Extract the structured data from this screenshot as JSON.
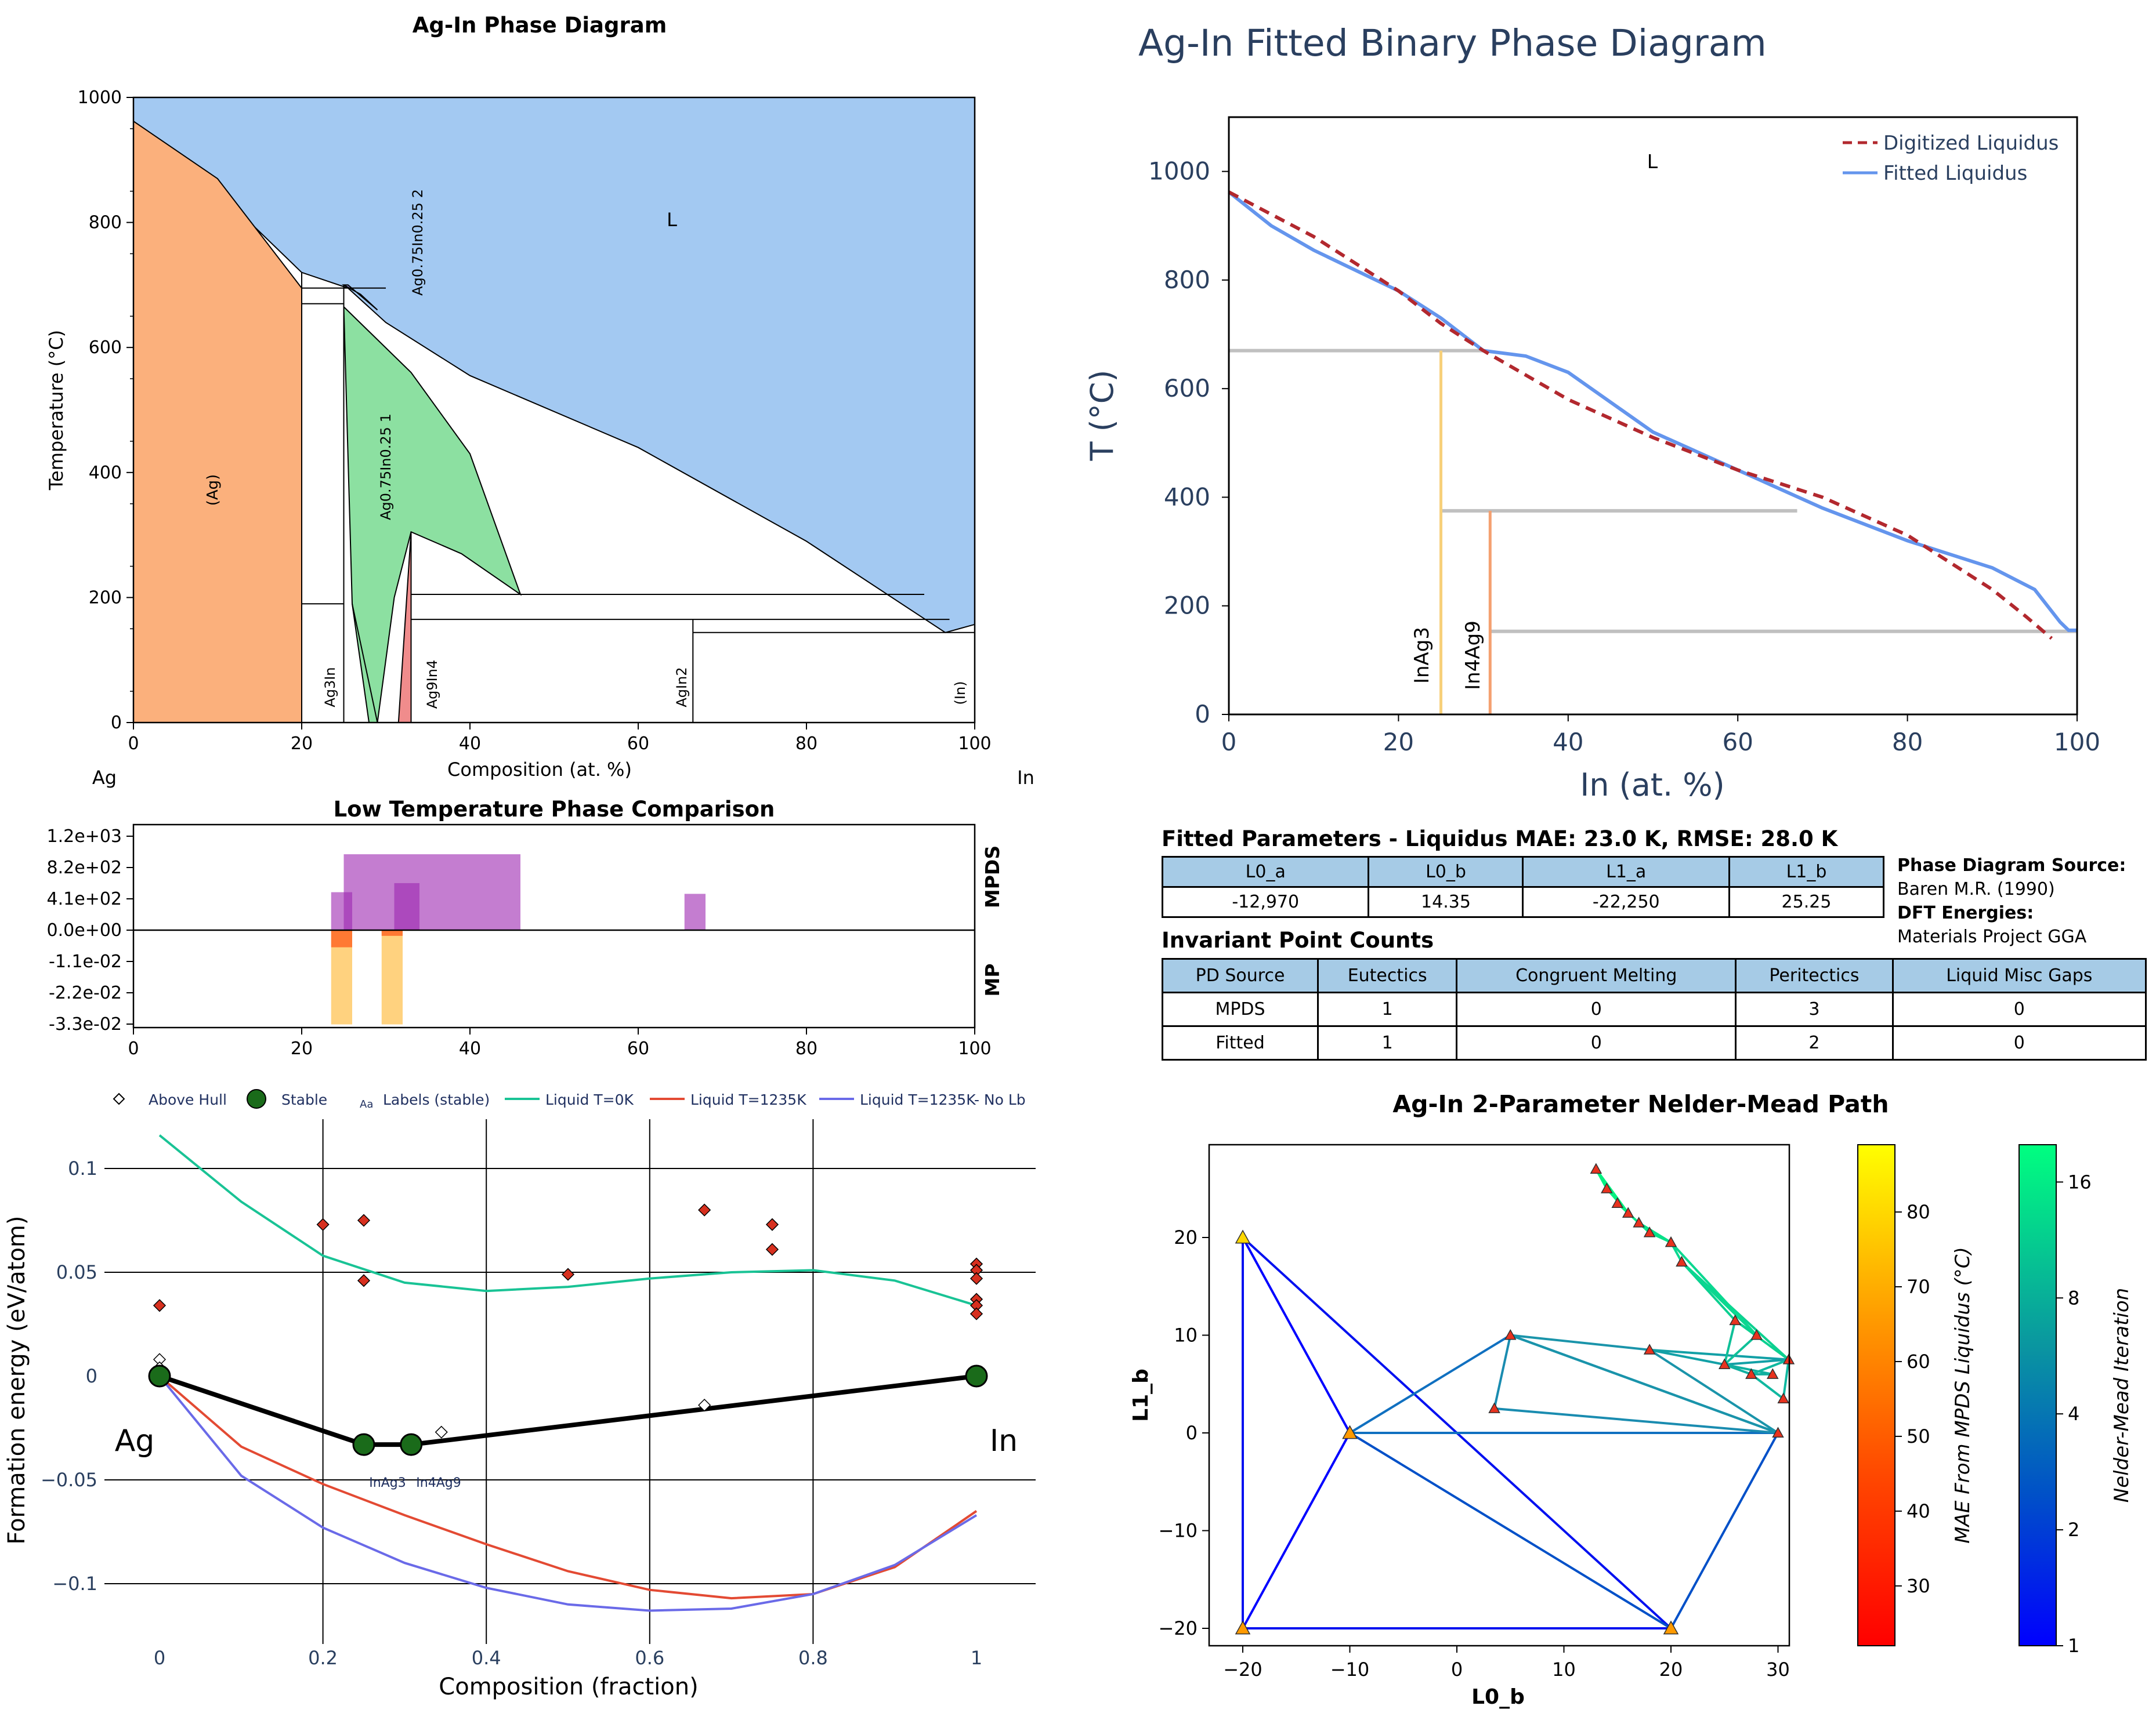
{
  "phase_diagram": {
    "title": "Ag-In Phase Diagram",
    "xlabel": "Composition (at. %)",
    "ylabel": "Temperature (°C)",
    "left_element": "Ag",
    "right_element": "In",
    "xticks": [
      "0",
      "20",
      "40",
      "60",
      "80",
      "100"
    ],
    "yticks": [
      "0",
      "200",
      "400",
      "600",
      "800",
      "1000"
    ],
    "region_labels": {
      "Ag": "(Ag)",
      "Ag3In": "Ag3In",
      "Ag9In4": "Ag9In4",
      "AgIn2": "AgIn2",
      "In": "(In)",
      "L": "L",
      "phase1": "Ag0.75In0.25 1",
      "phase2": "Ag0.75In0.25 2"
    },
    "colors": {
      "liquid": "#a3c9f2",
      "ag": "#fbb07c",
      "phase1": "#8ce0a1",
      "ag9in4": "#f08c8c",
      "phase2": "#9a9ae6"
    }
  },
  "comparison": {
    "title": "Low Temperature Phase Comparison",
    "yticks": [
      "1.2e+03",
      "8.2e+02",
      "4.1e+02",
      "0.0e+00",
      "-1.1e-02",
      "-2.2e-02",
      "-3.3e-02"
    ],
    "xticks": [
      "0",
      "20",
      "40",
      "60",
      "80",
      "100"
    ],
    "mpds_label": "MPDS",
    "mp_label": "MP"
  },
  "hull": {
    "legend": {
      "above_hull": "Above Hull",
      "stable": "Stable",
      "labels_marker": "Aa",
      "labels_stable": "Labels (stable)",
      "liq0": "Liquid T=0K",
      "liq1235": "Liquid T=1235K",
      "liq1235nolb": "Liquid T=1235K- No Lb"
    },
    "xlabel": "Composition (fraction)",
    "ylabel": "Formation energy (eV/atom)",
    "xticks": [
      "0",
      "0.2",
      "0.4",
      "0.6",
      "0.8",
      "1"
    ],
    "yticks": [
      "0.1",
      "0.05",
      "0",
      "−0.05",
      "−0.1"
    ],
    "left_label": "Ag",
    "right_label": "In",
    "stable_labels": [
      "InAg3",
      "In4Ag9"
    ]
  },
  "fitted": {
    "title": "Ag-In Fitted Binary Phase Diagram",
    "xlabel": "In (at. %)",
    "ylabel": "T (°C)",
    "xticks": [
      "0",
      "20",
      "40",
      "60",
      "80",
      "100"
    ],
    "yticks": [
      "0",
      "200",
      "400",
      "600",
      "800",
      "1000"
    ],
    "liquid_label": "L",
    "legend_digitized": "Digitized Liquidus",
    "legend_fitted": "Fitted Liquidus",
    "compound_labels": [
      "InAg3",
      "In4Ag9"
    ],
    "colors": {
      "digitized": "#b2282e",
      "fitted": "#6495ed",
      "tieline": "#c0c0c0",
      "inag3": "#f7d07a",
      "in4ag9": "#f4a070"
    }
  },
  "params": {
    "title": "Fitted Parameters - Liquidus MAE: 23.0 K, RMSE: 28.0 K",
    "headers": [
      "L0_a",
      "L0_b",
      "L1_a",
      "L1_b"
    ],
    "values": [
      "-12,970",
      "14.35",
      "-22,250",
      "25.25"
    ]
  },
  "source": {
    "pd_label": "Phase Diagram Source:",
    "pd_value": "Baren M.R. (1990)",
    "dft_label": "DFT Energies:",
    "dft_value": "Materials Project GGA"
  },
  "invariants": {
    "title": "Invariant Point Counts",
    "headers": [
      "PD Source",
      "Eutectics",
      "Congruent Melting",
      "Peritectics",
      "Liquid Misc Gaps"
    ],
    "rows": [
      [
        "MPDS",
        "1",
        "0",
        "3",
        "0"
      ],
      [
        "Fitted",
        "1",
        "0",
        "2",
        "0"
      ]
    ]
  },
  "nm": {
    "title": "Ag-In 2-Parameter Nelder-Mead Path",
    "xlabel": "L0_b",
    "ylabel": "L1_b",
    "xticks": [
      "−20",
      "−10",
      "0",
      "10",
      "20",
      "30"
    ],
    "yticks": [
      "20",
      "10",
      "0",
      "−10",
      "−20"
    ],
    "cb1_label": "MAE From MPDS Liquidus (°C)",
    "cb1_ticks": [
      "30",
      "40",
      "50",
      "60",
      "70",
      "80"
    ],
    "cb2_label": "Nelder-Mead Iteration",
    "cb2_ticks": [
      "1",
      "2",
      "4",
      "8",
      "16"
    ]
  },
  "chart_data": [
    {
      "type": "area",
      "title": "Ag-In Phase Diagram",
      "xlabel": "Composition (at. %)",
      "ylabel": "Temperature (°C)",
      "xlim": [
        0,
        100
      ],
      "ylim": [
        0,
        1000
      ],
      "regions": [
        {
          "name": "L",
          "points": [
            [
              0,
              962
            ],
            [
              0,
              1000
            ],
            [
              100,
              1000
            ],
            [
              100,
              157
            ],
            [
              96.5,
              144
            ],
            [
              80,
              290
            ],
            [
              60,
              440
            ],
            [
              40,
              555
            ],
            [
              30,
              640
            ],
            [
              25.5,
              695
            ],
            [
              20,
              720
            ],
            [
              10,
              850
            ],
            [
              0,
              962
            ]
          ]
        },
        {
          "name": "(Ag)",
          "points": [
            [
              0,
              0
            ],
            [
              0,
              962
            ],
            [
              10,
              870
            ],
            [
              20,
              695
            ],
            [
              20,
              0
            ]
          ]
        },
        {
          "name": "Ag0.75In0.25 1",
          "points": [
            [
              25,
              665
            ],
            [
              33,
              560
            ],
            [
              40,
              430
            ],
            [
              46,
              205
            ],
            [
              39,
              270
            ],
            [
              33,
              305
            ],
            [
              31,
              200
            ],
            [
              29,
              0
            ],
            [
              28,
              0
            ],
            [
              26,
              190
            ],
            [
              25,
              665
            ]
          ]
        },
        {
          "name": "Ag9In4",
          "points": [
            [
              31.5,
              0
            ],
            [
              33,
              305
            ],
            [
              33,
              0
            ]
          ]
        },
        {
          "name": "Ag0.75In0.25 2",
          "points": [
            [
              25,
              700
            ],
            [
              27,
              685
            ],
            [
              29,
              660
            ],
            [
              25.5,
              700
            ]
          ]
        }
      ],
      "tie_lines_T": [
        190,
        205,
        165,
        144
      ]
    },
    {
      "type": "bar",
      "title": "Low Temperature Phase Comparison",
      "xlim": [
        0,
        100
      ],
      "series": [
        {
          "name": "MPDS",
          "bars": [
            [
              25,
              46,
              920
            ],
            [
              23.5,
              26,
              460
            ],
            [
              31,
              34,
              570
            ],
            [
              65.5,
              68,
              440
            ]
          ]
        },
        {
          "name": "MP",
          "bars": [
            [
              23.5,
              26,
              -0.033
            ],
            [
              29.5,
              32,
              -0.033
            ],
            [
              23.5,
              26,
              -0.006
            ],
            [
              29.5,
              32,
              -0.002
            ]
          ]
        }
      ]
    },
    {
      "type": "scatter",
      "xlabel": "Composition (fraction)",
      "ylabel": "Formation energy (eV/atom)",
      "xlim": [
        -0.03,
        1.03
      ],
      "ylim": [
        -0.125,
        0.12
      ],
      "series": [
        {
          "name": "Above Hull",
          "x": [
            0,
            0,
            0,
            0.2,
            0.25,
            0.25,
            0.5,
            0.667,
            0.75,
            0.75,
            1,
            1,
            1,
            1,
            1,
            1,
            0.345,
            0.667
          ],
          "y": [
            0.034,
            0.008,
            0.004,
            0.073,
            0.075,
            0.046,
            0.049,
            0.08,
            0.073,
            0.061,
            0.054,
            0.051,
            0.047,
            0.037,
            0.034,
            0.03,
            -0.027,
            -0.014
          ]
        },
        {
          "name": "Stable",
          "x": [
            0,
            0.25,
            0.308,
            1
          ],
          "y": [
            0,
            -0.033,
            -0.033,
            0
          ]
        },
        {
          "name": "Liquid T=0K",
          "x": [
            0,
            0.1,
            0.2,
            0.3,
            0.4,
            0.5,
            0.6,
            0.7,
            0.8,
            0.9,
            1
          ],
          "y": [
            0.116,
            0.084,
            0.058,
            0.045,
            0.041,
            0.043,
            0.047,
            0.05,
            0.051,
            0.046,
            0.034
          ]
        },
        {
          "name": "Liquid T=1235K",
          "x": [
            0,
            0.1,
            0.2,
            0.3,
            0.4,
            0.5,
            0.6,
            0.7,
            0.8,
            0.9,
            1
          ],
          "y": [
            0,
            -0.034,
            -0.052,
            -0.067,
            -0.081,
            -0.094,
            -0.103,
            -0.107,
            -0.105,
            -0.092,
            -0.065
          ]
        },
        {
          "name": "Liquid T=1235K- No Lb",
          "x": [
            0,
            0.1,
            0.2,
            0.3,
            0.4,
            0.5,
            0.6,
            0.7,
            0.8,
            0.9,
            1
          ],
          "y": [
            0,
            -0.048,
            -0.073,
            -0.09,
            -0.102,
            -0.11,
            -0.113,
            -0.112,
            -0.105,
            -0.091,
            -0.067
          ]
        }
      ]
    },
    {
      "type": "line",
      "title": "Ag-In Fitted Binary Phase Diagram",
      "xlabel": "In (at. %)",
      "ylabel": "T (°C)",
      "xlim": [
        0,
        100
      ],
      "ylim": [
        0,
        1100
      ],
      "series": [
        {
          "name": "Digitized Liquidus",
          "x": [
            0,
            10,
            20,
            25,
            30,
            40,
            50,
            60,
            70,
            80,
            90,
            94,
            97
          ],
          "y": [
            962,
            880,
            780,
            720,
            670,
            580,
            510,
            450,
            400,
            330,
            230,
            180,
            140
          ]
        },
        {
          "name": "Fitted Liquidus",
          "x": [
            0,
            5,
            10,
            20,
            25,
            30,
            35,
            40,
            50,
            60,
            70,
            80,
            90,
            95,
            98,
            99,
            100
          ],
          "y": [
            962,
            900,
            855,
            780,
            730,
            670,
            660,
            630,
            520,
            450,
            380,
            320,
            270,
            230,
            170,
            155,
            155
          ]
        }
      ],
      "tie_lines": [
        {
          "y": 670,
          "x0": 0,
          "x1": 30
        },
        {
          "y": 375,
          "x0": 25,
          "x1": 67
        },
        {
          "y": 153,
          "x0": 30.8,
          "x1": 100
        }
      ],
      "compounds": [
        {
          "name": "InAg3",
          "x": 25,
          "y": 670
        },
        {
          "name": "In4Ag9",
          "x": 30.8,
          "y": 375
        }
      ]
    },
    {
      "type": "scatter",
      "title": "Ag-In 2-Parameter Nelder-Mead Path",
      "xlabel": "L0_b",
      "ylabel": "L1_b",
      "xlim": [
        -22,
        33
      ],
      "ylim": [
        -22,
        29
      ],
      "points": [
        [
          -20,
          20
        ],
        [
          -10,
          0
        ],
        [
          -20,
          -20
        ],
        [
          20,
          -20
        ],
        [
          5,
          10
        ],
        [
          30,
          0
        ],
        [
          3.5,
          2.5
        ],
        [
          18,
          8.5
        ],
        [
          25,
          7
        ],
        [
          27.5,
          6
        ],
        [
          29.5,
          6
        ],
        [
          31,
          7.5
        ],
        [
          30.5,
          3.5
        ],
        [
          26,
          11.5
        ],
        [
          28,
          10
        ],
        [
          21,
          17.5
        ],
        [
          20,
          19.5
        ],
        [
          18,
          20.5
        ],
        [
          17,
          21.5
        ],
        [
          16,
          22.5
        ],
        [
          15,
          23.5
        ],
        [
          14,
          25
        ],
        [
          13,
          27
        ]
      ],
      "iteration_colorbar": [
        1,
        20
      ],
      "mae_colorbar": [
        22,
        89
      ]
    }
  ]
}
